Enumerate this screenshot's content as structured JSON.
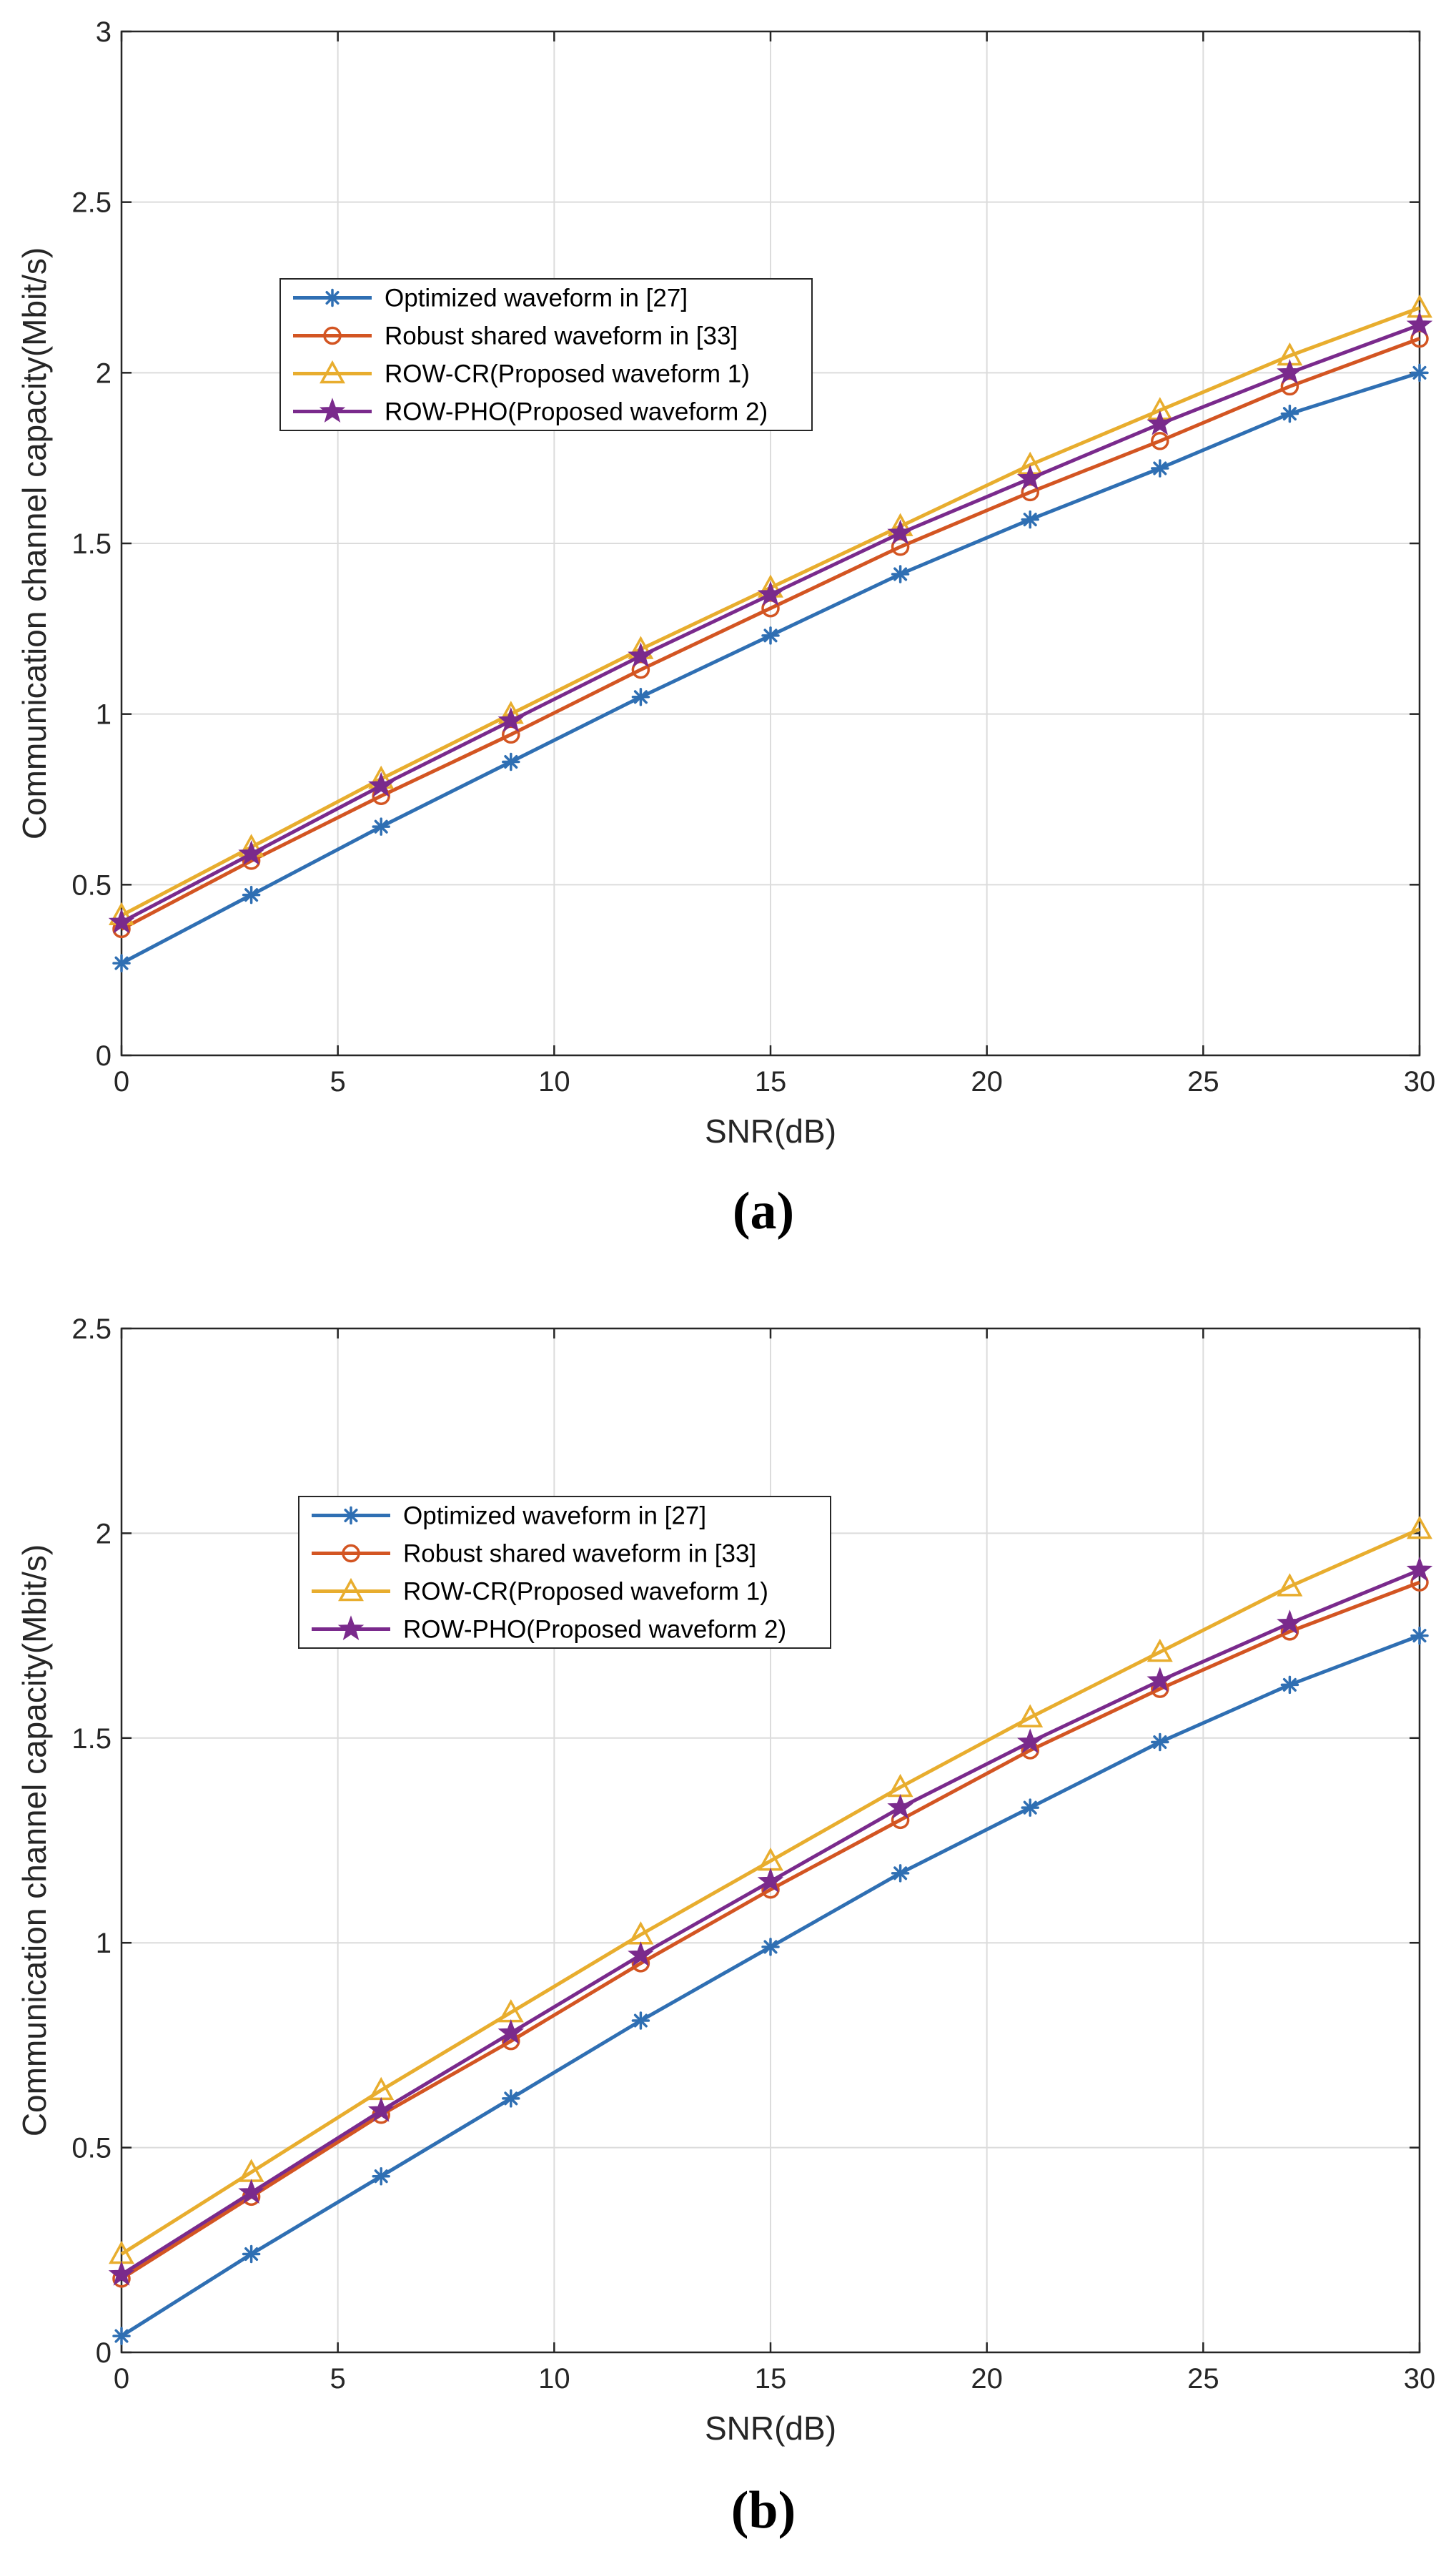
{
  "chart_data": [
    {
      "type": "line",
      "panel_label": "(a)",
      "xlabel": "SNR(dB)",
      "ylabel": "Communication channel capacity(Mbit/s)",
      "xlim": [
        0,
        30
      ],
      "ylim": [
        0,
        3
      ],
      "xticks": [
        0,
        5,
        10,
        15,
        20,
        25,
        30
      ],
      "yticks": [
        0,
        0.5,
        1,
        1.5,
        2,
        2.5,
        3
      ],
      "xtick_labels": [
        "0",
        "5",
        "10",
        "15",
        "20",
        "25",
        "30"
      ],
      "ytick_labels": [
        "0",
        "0.5",
        "1",
        "1.5",
        "2",
        "2.5",
        "3"
      ],
      "grid": true,
      "legend_position": "upper-left",
      "x": [
        0,
        3,
        6,
        9,
        12,
        15,
        18,
        21,
        24,
        27,
        30
      ],
      "series": [
        {
          "name": "Optimized waveform in [27]",
          "color": "#2f6fb3",
          "marker": "asterisk",
          "values": [
            0.27,
            0.47,
            0.67,
            0.86,
            1.05,
            1.23,
            1.41,
            1.57,
            1.72,
            1.88,
            2.0
          ]
        },
        {
          "name": "Robust shared waveform in [33]",
          "color": "#d35522",
          "marker": "circle",
          "values": [
            0.37,
            0.57,
            0.76,
            0.94,
            1.13,
            1.31,
            1.49,
            1.65,
            1.8,
            1.96,
            2.1
          ]
        },
        {
          "name": "ROW-CR(Proposed waveform 1)",
          "color": "#e8ad2e",
          "marker": "triangle",
          "values": [
            0.41,
            0.61,
            0.81,
            1.0,
            1.19,
            1.37,
            1.55,
            1.73,
            1.89,
            2.05,
            2.19
          ]
        },
        {
          "name": "ROW-PHO(Proposed waveform 2)",
          "color": "#7a2a8c",
          "marker": "star",
          "values": [
            0.39,
            0.59,
            0.79,
            0.98,
            1.17,
            1.35,
            1.53,
            1.69,
            1.85,
            2.0,
            2.14
          ]
        }
      ]
    },
    {
      "type": "line",
      "panel_label": "(b)",
      "xlabel": "SNR(dB)",
      "ylabel": "Communication channel capacity(Mbit/s)",
      "xlim": [
        0,
        30
      ],
      "ylim": [
        0,
        2.5
      ],
      "xticks": [
        0,
        5,
        10,
        15,
        20,
        25,
        30
      ],
      "yticks": [
        0,
        0.5,
        1,
        1.5,
        2,
        2.5
      ],
      "xtick_labels": [
        "0",
        "5",
        "10",
        "15",
        "20",
        "25",
        "30"
      ],
      "ytick_labels": [
        "0",
        "0.5",
        "1",
        "1.5",
        "2",
        "2.5"
      ],
      "grid": true,
      "legend_position": "upper-left",
      "x": [
        0,
        3,
        6,
        9,
        12,
        15,
        18,
        21,
        24,
        27,
        30
      ],
      "series": [
        {
          "name": "Optimized waveform in [27]",
          "color": "#2f6fb3",
          "marker": "asterisk",
          "values": [
            0.04,
            0.24,
            0.43,
            0.62,
            0.81,
            0.99,
            1.17,
            1.33,
            1.49,
            1.63,
            1.75
          ]
        },
        {
          "name": "Robust shared waveform in [33]",
          "color": "#d35522",
          "marker": "circle",
          "values": [
            0.18,
            0.38,
            0.58,
            0.76,
            0.95,
            1.13,
            1.3,
            1.47,
            1.62,
            1.76,
            1.88
          ]
        },
        {
          "name": "ROW-CR(Proposed waveform 1)",
          "color": "#e8ad2e",
          "marker": "triangle",
          "values": [
            0.24,
            0.44,
            0.64,
            0.83,
            1.02,
            1.2,
            1.38,
            1.55,
            1.71,
            1.87,
            2.01
          ]
        },
        {
          "name": "ROW-PHO(Proposed waveform 2)",
          "color": "#7a2a8c",
          "marker": "star",
          "values": [
            0.19,
            0.39,
            0.59,
            0.78,
            0.97,
            1.15,
            1.33,
            1.49,
            1.64,
            1.78,
            1.91
          ]
        }
      ]
    }
  ]
}
